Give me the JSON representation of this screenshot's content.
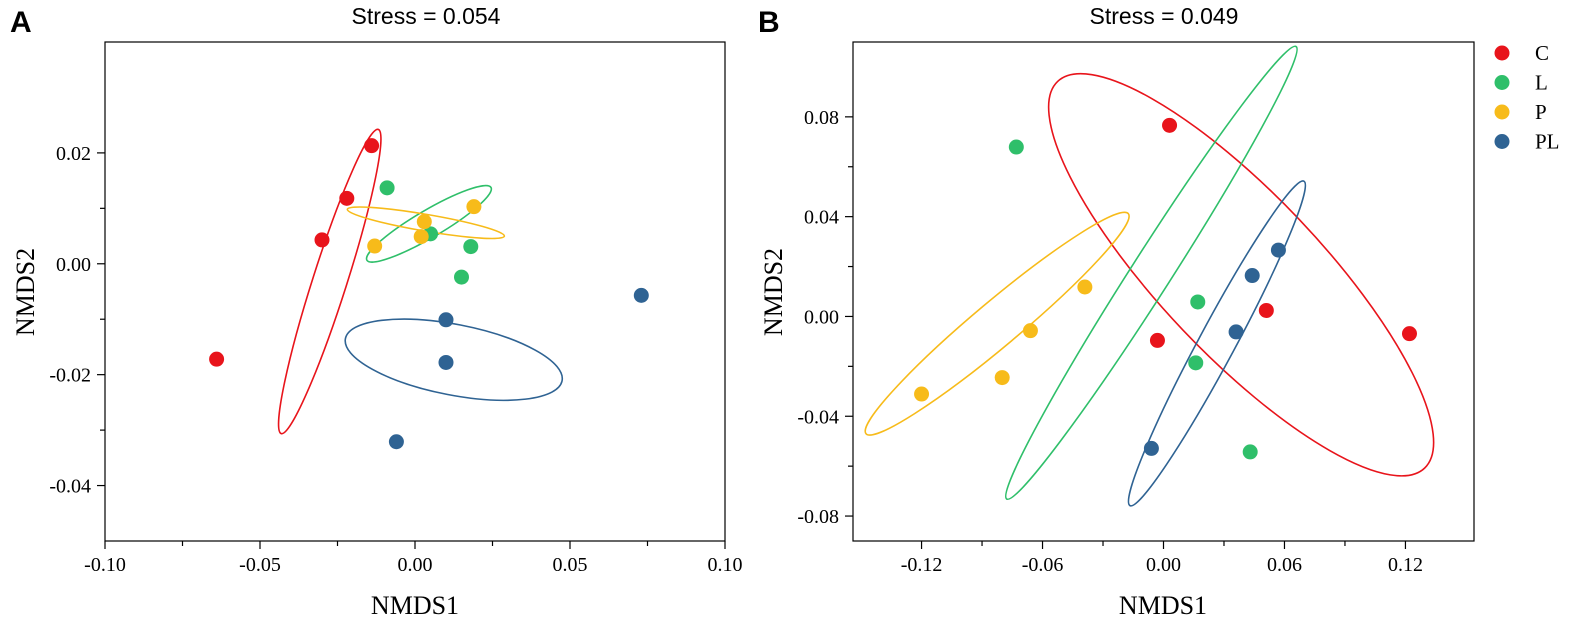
{
  "series_colors": {
    "C": "#e8141b",
    "L": "#2fbf6a",
    "P": "#f7bb1a",
    "PL": "#2f6393"
  },
  "legend": {
    "items": [
      {
        "key": "C",
        "label": "C"
      },
      {
        "key": "L",
        "label": "L"
      },
      {
        "key": "P",
        "label": "P"
      },
      {
        "key": "PL",
        "label": "PL"
      }
    ]
  },
  "chart_data": [
    {
      "type": "scatter",
      "panel": "A",
      "title": "Stress =  0.054",
      "xlabel": "NMDS1",
      "ylabel": "NMDS2",
      "xlim": [
        -0.1,
        0.1
      ],
      "ylim": [
        -0.05,
        0.04
      ],
      "xticks": [
        -0.1,
        -0.05,
        0.0,
        0.05,
        0.1
      ],
      "xtick_labels": [
        "-0.10",
        "-0.05",
        "0.00",
        "0.05",
        "0.10"
      ],
      "yticks": [
        -0.04,
        -0.02,
        0.0,
        0.02
      ],
      "ytick_labels": [
        "-0.04",
        "-0.02",
        "0.00",
        "0.02"
      ],
      "series": [
        {
          "name": "C",
          "points": [
            [
              -0.014,
              0.0213
            ],
            [
              -0.022,
              0.0118
            ],
            [
              -0.03,
              0.0043
            ],
            [
              -0.064,
              -0.0172
            ]
          ]
        },
        {
          "name": "L",
          "points": [
            [
              -0.009,
              0.0137
            ],
            [
              0.005,
              0.0054
            ],
            [
              0.018,
              0.0031
            ],
            [
              0.015,
              -0.0024
            ]
          ]
        },
        {
          "name": "P",
          "points": [
            [
              0.019,
              0.0103
            ],
            [
              0.003,
              0.0076
            ],
            [
              0.002,
              0.0049
            ],
            [
              -0.013,
              0.0032
            ]
          ]
        },
        {
          "name": "PL",
          "points": [
            [
              0.073,
              -0.0057
            ],
            [
              0.01,
              -0.0101
            ],
            [
              0.01,
              -0.0178
            ],
            [
              -0.006,
              -0.0321
            ]
          ]
        }
      ],
      "ellipses": [
        {
          "name": "C",
          "cx": -0.0275,
          "cy": -0.0032,
          "rx": 0.0515,
          "ry": 0.0055,
          "angle_deg": 72.3
        },
        {
          "name": "L",
          "cx": 0.0045,
          "cy": 0.0072,
          "rx": 0.0232,
          "ry": 0.0044,
          "angle_deg": 30.4
        },
        {
          "name": "P",
          "cx": 0.0035,
          "cy": 0.0074,
          "rx": 0.0257,
          "ry": 0.0027,
          "angle_deg": -9.7
        },
        {
          "name": "PL",
          "cx": 0.0125,
          "cy": -0.0173,
          "rx": 0.0356,
          "ry": 0.0114,
          "angle_deg": -11.0
        }
      ]
    },
    {
      "type": "scatter",
      "panel": "B",
      "title": "Stress =  0.049",
      "xlabel": "NMDS1",
      "ylabel": "NMDS2",
      "xlim": [
        -0.154,
        0.154
      ],
      "ylim": [
        -0.09,
        0.11
      ],
      "xticks": [
        -0.12,
        -0.06,
        0.0,
        0.06,
        0.12
      ],
      "xtick_labels": [
        "-0.12",
        "-0.06",
        "0.00",
        "0.06",
        "0.12"
      ],
      "yticks": [
        -0.08,
        -0.04,
        0.0,
        0.04,
        0.08
      ],
      "ytick_labels": [
        "-0.08",
        "-0.04",
        "0.00",
        "0.04",
        "0.08"
      ],
      "series": [
        {
          "name": "C",
          "points": [
            [
              0.003,
              0.0766
            ],
            [
              0.051,
              0.0024
            ],
            [
              0.122,
              -0.0069
            ],
            [
              -0.003,
              -0.0096
            ]
          ]
        },
        {
          "name": "L",
          "points": [
            [
              -0.073,
              0.0679
            ],
            [
              0.017,
              0.0058
            ],
            [
              0.016,
              -0.0186
            ],
            [
              0.043,
              -0.0543
            ]
          ]
        },
        {
          "name": "P",
          "points": [
            [
              -0.039,
              0.0118
            ],
            [
              -0.066,
              -0.0057
            ],
            [
              -0.08,
              -0.0245
            ],
            [
              -0.12,
              -0.0311
            ]
          ]
        },
        {
          "name": "PL",
          "points": [
            [
              0.057,
              0.0266
            ],
            [
              0.044,
              0.0164
            ],
            [
              0.036,
              -0.0062
            ],
            [
              -0.006,
              -0.0529
            ]
          ]
        }
      ],
      "ellipses": [
        {
          "name": "C",
          "cx": 0.0385,
          "cy": 0.0167,
          "rx": 0.1322,
          "ry": 0.0398,
          "angle_deg": -46.5
        },
        {
          "name": "L",
          "cx": -0.006,
          "cy": 0.0175,
          "rx": 0.1332,
          "ry": 0.0099,
          "angle_deg": 57.4
        },
        {
          "name": "P",
          "cx": -0.0825,
          "cy": -0.0029,
          "rx": 0.0849,
          "ry": 0.0111,
          "angle_deg": 40.0
        },
        {
          "name": "PL",
          "cx": 0.0265,
          "cy": -0.0108,
          "rx": 0.0913,
          "ry": 0.009,
          "angle_deg": 61.8
        }
      ]
    }
  ]
}
